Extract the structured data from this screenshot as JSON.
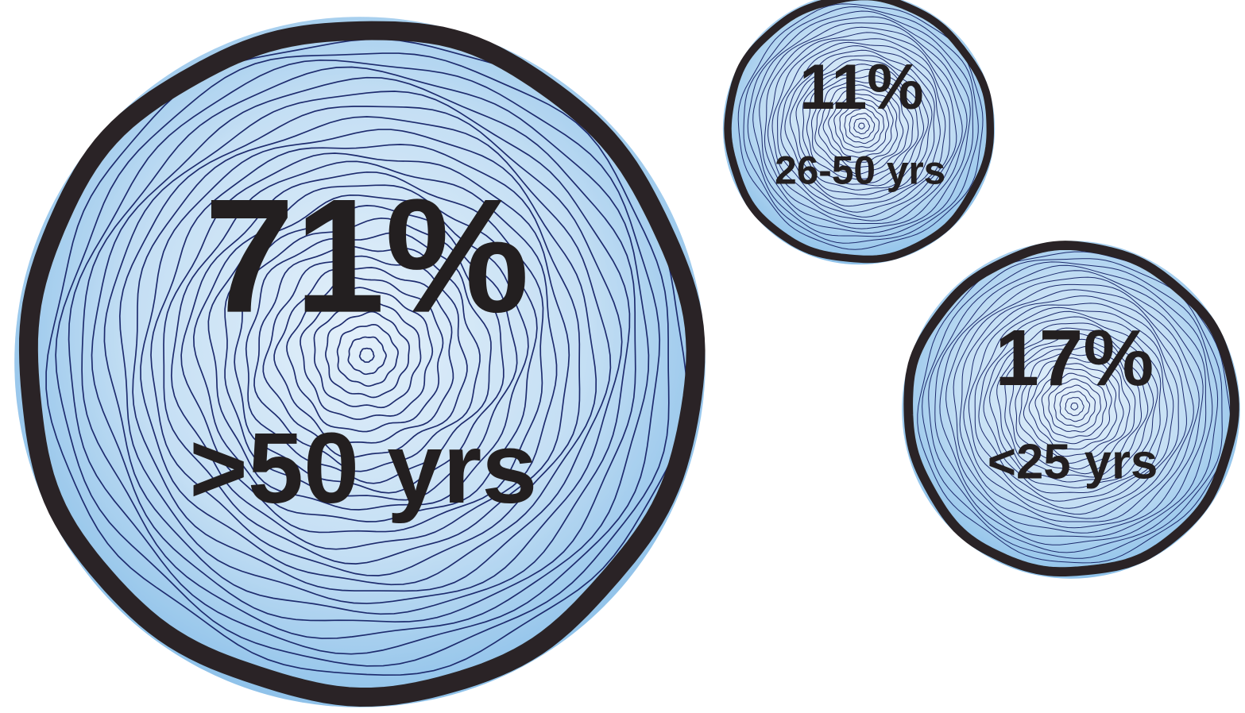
{
  "chart_data": {
    "type": "bubble",
    "categories": [
      ">50 yrs",
      "26-50 yrs",
      "<25 yrs"
    ],
    "values": [
      71,
      11,
      17
    ],
    "value_labels": [
      "71%",
      "11%",
      "17%"
    ],
    "color": "#8fc3ea"
  }
}
